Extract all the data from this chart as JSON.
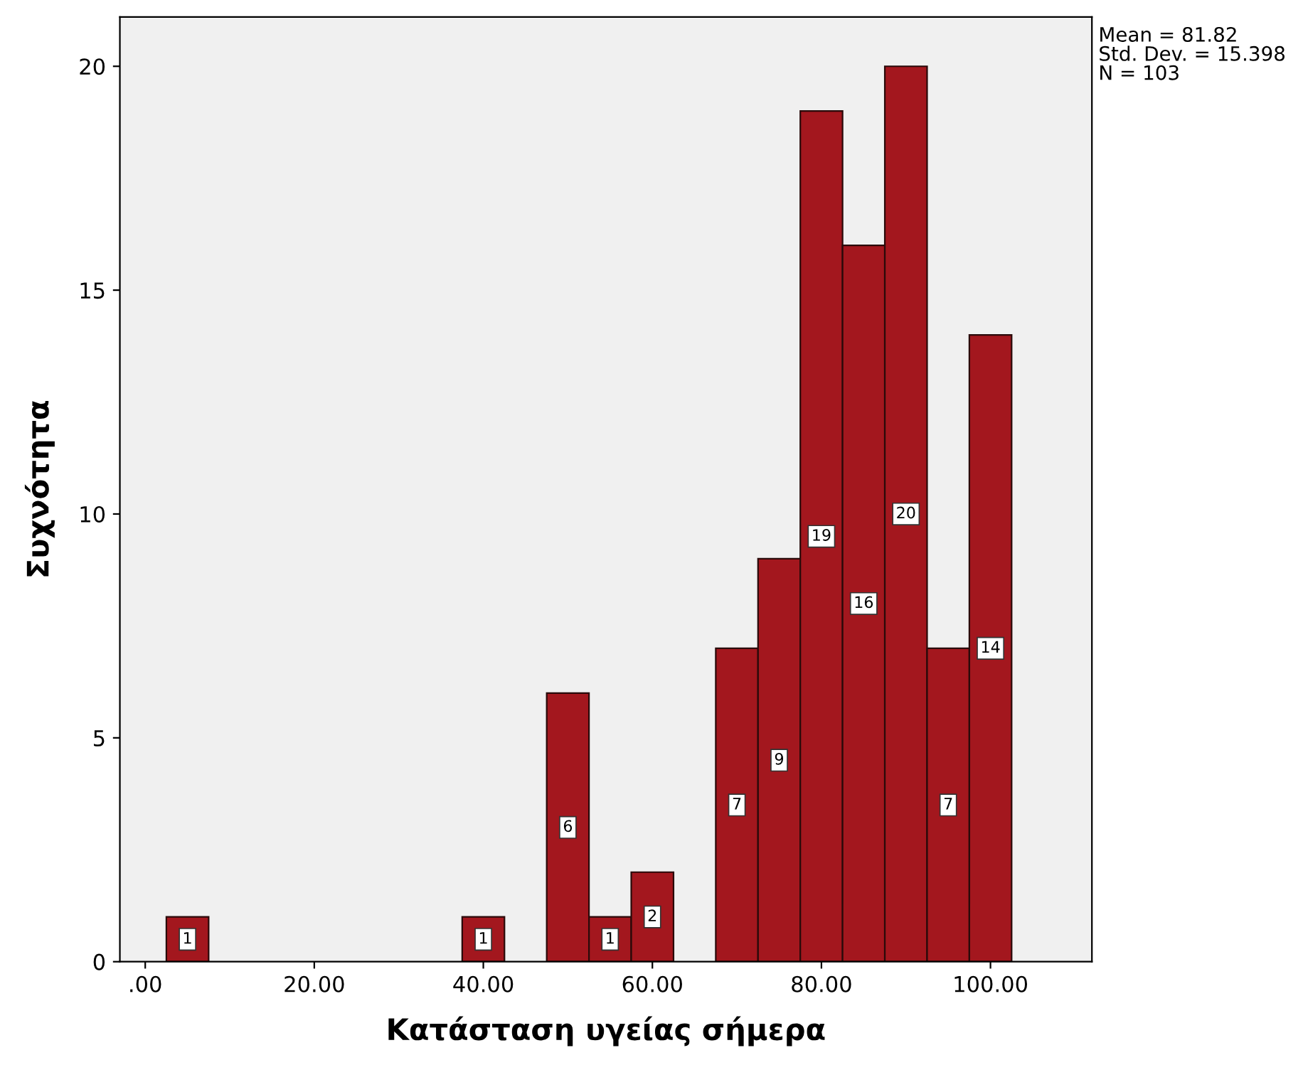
{
  "chart_data": {
    "type": "histogram",
    "xlabel": "Κατάσταση υγείας σήμερα",
    "ylabel": "Συχνότητα",
    "bins": [
      2.5,
      7.5,
      12.5,
      17.5,
      22.5,
      27.5,
      32.5,
      37.5,
      42.5,
      47.5,
      52.5,
      57.5,
      62.5,
      67.5,
      72.5,
      77.5,
      82.5,
      87.5,
      92.5,
      97.5,
      102.5
    ],
    "values": [
      1,
      0,
      0,
      0,
      0,
      0,
      0,
      1,
      0,
      6,
      1,
      2,
      0,
      7,
      9,
      19,
      16,
      20,
      7,
      14
    ],
    "value_labels": [
      "1",
      null,
      null,
      null,
      null,
      null,
      null,
      "1",
      null,
      "6",
      "1",
      "2",
      null,
      "7",
      "9",
      "19",
      "16",
      "20",
      "7",
      "14"
    ],
    "color": "#a3171e",
    "xlim": [
      -3,
      112
    ],
    "ylim": [
      0,
      21.1
    ],
    "xticks": [
      {
        "value": 0,
        "label": ".00"
      },
      {
        "value": 20,
        "label": "20.00"
      },
      {
        "value": 40,
        "label": "40.00"
      },
      {
        "value": 60,
        "label": "60.00"
      },
      {
        "value": 80,
        "label": "80.00"
      },
      {
        "value": 100,
        "label": "100.00"
      }
    ],
    "yticks": [
      0,
      5,
      10,
      15,
      20
    ],
    "grid": false,
    "legend": false,
    "annotations": [
      "Mean = 81.82\nStd. Dev. = 15.398\nN = 103"
    ]
  }
}
